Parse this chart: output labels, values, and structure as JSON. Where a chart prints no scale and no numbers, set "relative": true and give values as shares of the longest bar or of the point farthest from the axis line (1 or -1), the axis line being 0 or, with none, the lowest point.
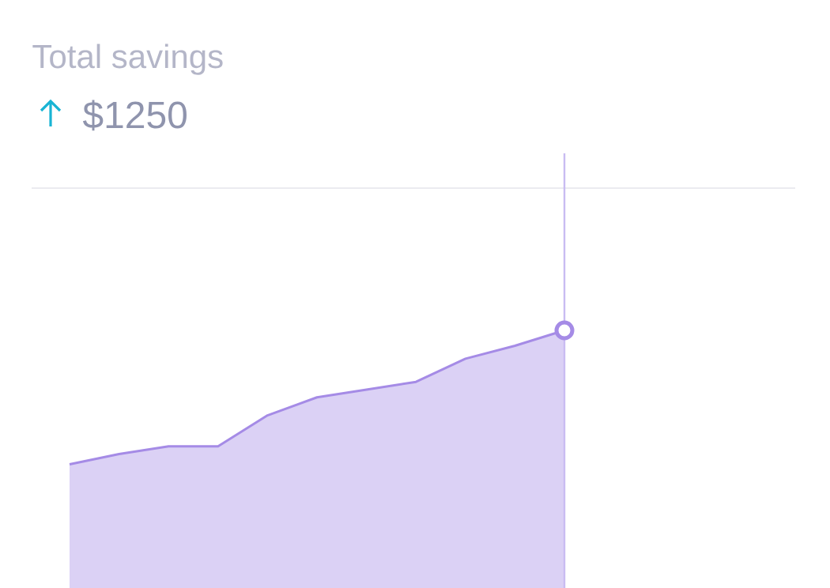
{
  "chart_data": {
    "type": "area",
    "title": "Total savings",
    "subtitle": "$1250",
    "relative": true,
    "categories": [
      null,
      null,
      null,
      null,
      null,
      null,
      null,
      null,
      null,
      null,
      null
    ],
    "series": [
      {
        "color": "#a58be6",
        "values": [
          0.48,
          0.52,
          0.55,
          0.55,
          0.67,
          0.74,
          0.77,
          0.8,
          0.89,
          0.94,
          1.0
        ]
      }
    ]
  }
}
